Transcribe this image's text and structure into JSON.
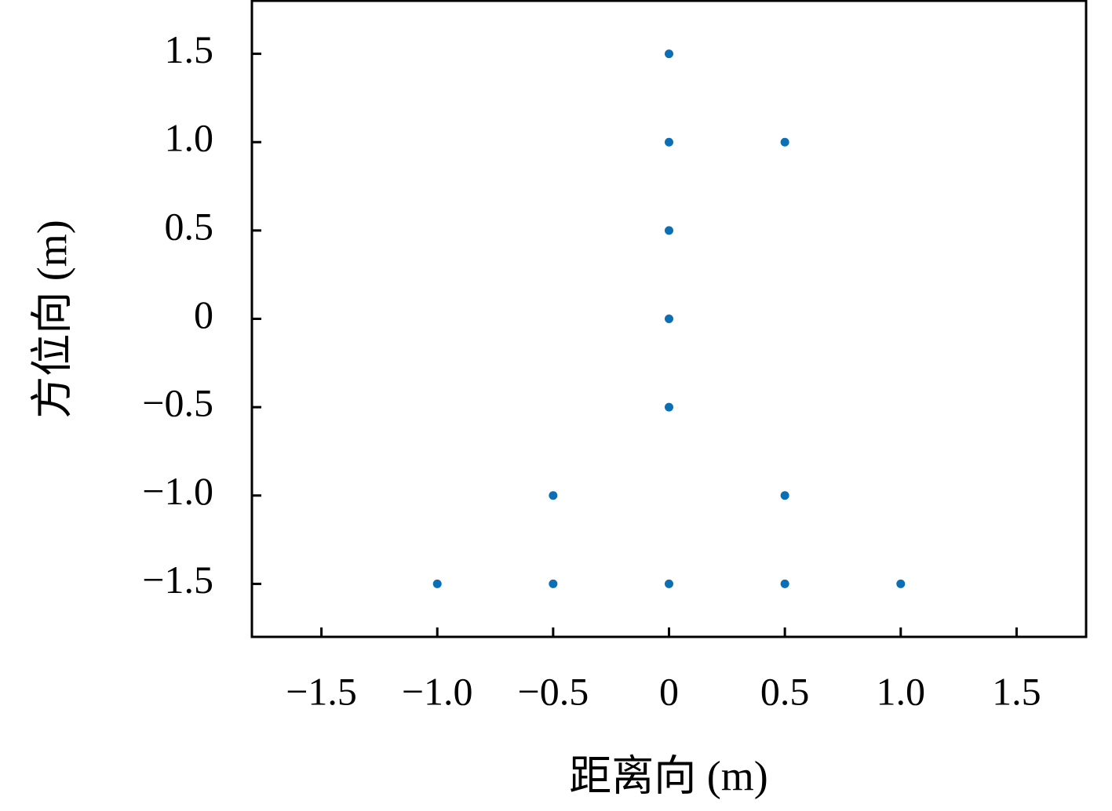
{
  "chart_data": {
    "type": "scatter",
    "x_label": "距离向 (m)",
    "y_label": "方位向 (m)",
    "x": [
      0,
      0,
      0.5,
      0,
      0,
      0,
      -0.5,
      0.5,
      -1,
      -0.5,
      0,
      0.5,
      1
    ],
    "values": [
      1.5,
      1,
      1,
      0.5,
      0,
      -0.5,
      -1,
      -1,
      -1.5,
      -1.5,
      -1.5,
      -1.5,
      -1.5
    ],
    "color": "#0a6fb5",
    "xlim": [
      -1.8,
      1.8
    ],
    "ylim": [
      -1.8,
      1.8
    ],
    "xticks": [
      {
        "value": -1.5,
        "label": "−1.5"
      },
      {
        "value": -1,
        "label": "−1.0"
      },
      {
        "value": -0.5,
        "label": "−0.5"
      },
      0,
      0.5,
      {
        "value": 1,
        "label": "1.0"
      },
      1.5
    ],
    "yticks": [
      {
        "value": -1.5,
        "label": "−1.5"
      },
      {
        "value": -1,
        "label": "−1.0"
      },
      {
        "value": -0.5,
        "label": "−0.5"
      },
      0,
      0.5,
      {
        "value": 1,
        "label": "1.0"
      },
      1.5
    ],
    "grid": false
  }
}
